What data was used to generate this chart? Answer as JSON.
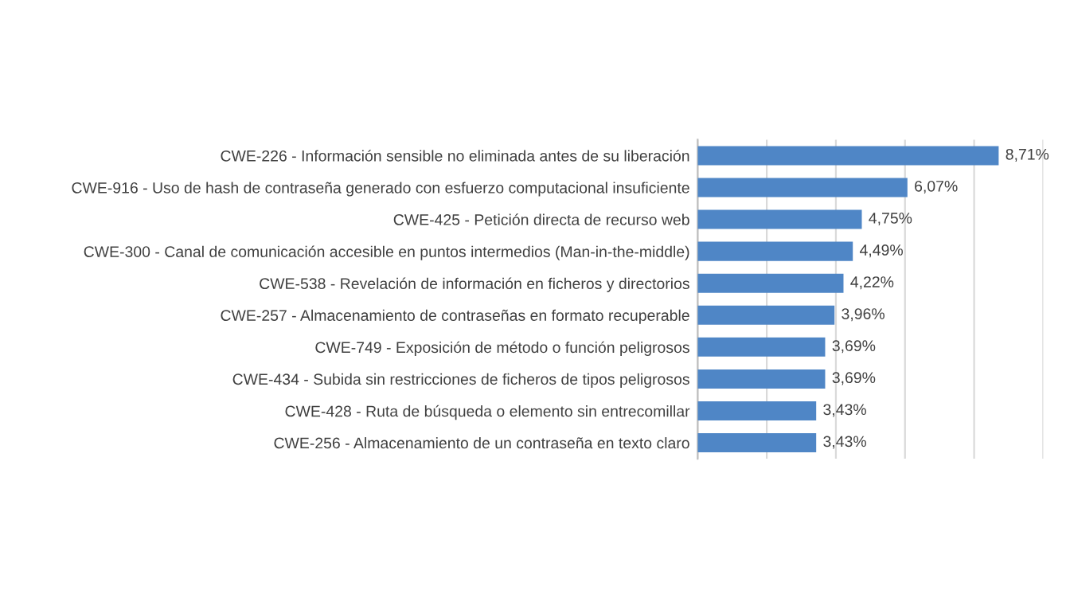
{
  "chart_data": {
    "type": "bar",
    "orientation": "horizontal",
    "categories": [
      "CWE-226 - Información sensible no eliminada antes de su liberación",
      "CWE-916 - Uso de hash de contraseña generado con esfuerzo computacional insuficiente",
      "CWE-425 - Petición directa de recurso web",
      "CWE-300 - Canal de comunicación accesible en puntos intermedios (Man-in-the-middle)",
      "CWE-538 - Revelación de información en ficheros y directorios",
      "CWE-257 - Almacenamiento de contraseñas en formato recuperable",
      "CWE-749 - Exposición de método o función peligrosos",
      "CWE-434 - Subida sin restricciones de ficheros de tipos peligrosos",
      "CWE-428 - Ruta de búsqueda o elemento sin entrecomillar",
      "CWE-256 - Almacenamiento de un contraseña en texto claro"
    ],
    "values": [
      8.71,
      6.07,
      4.75,
      4.49,
      4.22,
      3.96,
      3.69,
      3.69,
      3.43,
      3.43
    ],
    "value_labels": [
      "8,71%",
      "6,07%",
      "4,75%",
      "4,49%",
      "4,22%",
      "3,96%",
      "3,69%",
      "3,69%",
      "3,43%",
      "3,43%"
    ],
    "color": "#4f86c6",
    "xlim": [
      0,
      10
    ],
    "xticks": [
      {
        "value": 0,
        "label": null
      },
      {
        "value": 2,
        "label": null
      },
      {
        "value": 4,
        "label": null
      },
      {
        "value": 6,
        "label": null
      },
      {
        "value": 8,
        "label": null
      },
      {
        "value": 10,
        "label": null
      }
    ],
    "tick_labels": "y",
    "grid": "x"
  }
}
